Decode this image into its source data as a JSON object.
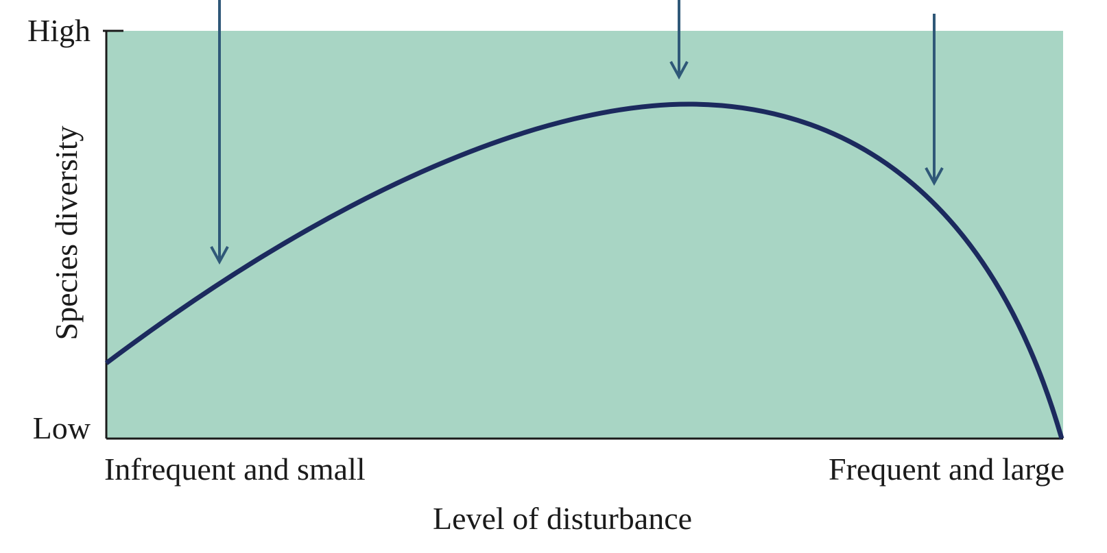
{
  "axes": {
    "y_title": "Species diversity",
    "y_high": "High",
    "y_low": "Low",
    "x_title": "Level of disturbance",
    "x_left": "Infrequent and small",
    "x_right": "Frequent and large"
  }
}
